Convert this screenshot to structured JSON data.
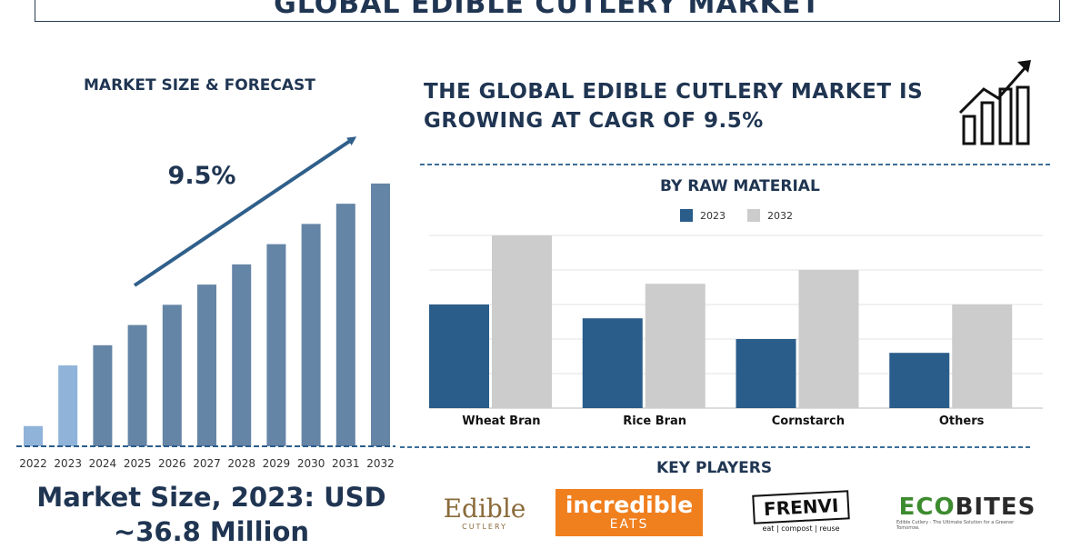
{
  "title": "GLOBAL EDIBLE CUTLERY MARKET",
  "left_panel": {
    "subtitle": "MARKET SIZE & FORECAST",
    "cagr_label": "9.5%",
    "market_size": "Market Size, 2023: USD ~36.8 Million"
  },
  "headline": "THE GLOBAL EDIBLE CUTLERY MARKET IS GROWING AT CAGR OF 9.5%",
  "raw_material": {
    "title": "BY RAW MATERIAL"
  },
  "key_players": {
    "title": "KEY PLAYERS",
    "logos": [
      {
        "main": "Edible",
        "sub": "CUTLERY"
      },
      {
        "main": "incredible",
        "sub": "EATS"
      },
      {
        "main": "FRENVI",
        "sub": "eat | compost | reuse"
      },
      {
        "main": "ECOBITES",
        "sub": "Edible Cutlery - The Ultimate Solution for a Greener Tomorrow."
      }
    ]
  },
  "colors": {
    "dark_blue": "#2a5d8a",
    "grey": "#cccccc",
    "forecast_bar": "#6585a6",
    "highlight_bar": "#8fb3d9",
    "text": "#1f3552"
  },
  "chart_data": [
    {
      "type": "bar",
      "title": "MARKET SIZE & FORECAST",
      "categories": [
        "2022",
        "2023",
        "2024",
        "2025",
        "2026",
        "2027",
        "2028",
        "2029",
        "2030",
        "2031",
        "2032"
      ],
      "values": [
        1,
        4,
        5,
        6,
        7,
        8,
        9,
        10,
        11,
        12,
        13
      ],
      "highlight": [
        "2022",
        "2023"
      ],
      "annotation": "9.5%",
      "ylim": [
        0,
        13.4
      ],
      "grid": false
    },
    {
      "type": "bar",
      "title": "BY RAW MATERIAL",
      "categories": [
        "Wheat Bran",
        "Rice Bran",
        "Cornstarch",
        "Others"
      ],
      "series": [
        {
          "name": "2023",
          "values": [
            3,
            2.6,
            2,
            1.6
          ]
        },
        {
          "name": "2032",
          "values": [
            5,
            3.6,
            4,
            3
          ]
        }
      ],
      "ylim": [
        0,
        5
      ],
      "grid": true,
      "legend": "top"
    }
  ]
}
